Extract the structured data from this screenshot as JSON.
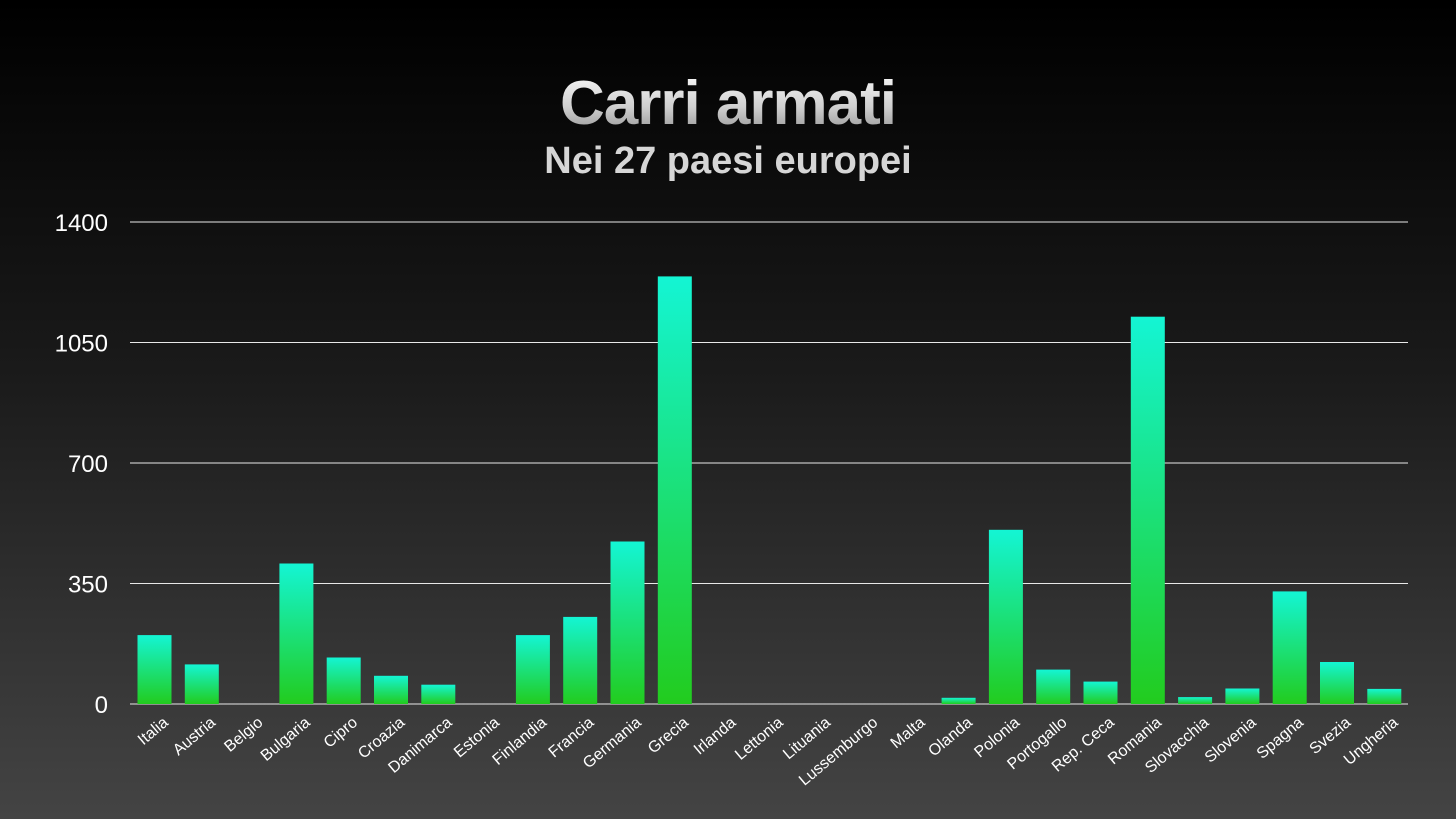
{
  "header": {
    "title": "Carri armati",
    "subtitle": "Nei 27 paesi europei"
  },
  "colors": {
    "bar_top": "#14f5d4",
    "bar_bottom": "#22cc1e",
    "grid": "#e8e8e8",
    "text": "#ffffff"
  },
  "chart_data": {
    "type": "bar",
    "title": "Carri armati",
    "subtitle": "Nei 27 paesi europei",
    "xlabel": "",
    "ylabel": "",
    "ylim": [
      0,
      1400
    ],
    "yticks": [
      0,
      350,
      700,
      1050,
      1400
    ],
    "grid": true,
    "categories": [
      "Italia",
      "Austria",
      "Belgio",
      "Bulgaria",
      "Cipro",
      "Croazia",
      "Danimarca",
      "Estonia",
      "Finlandia",
      "Francia",
      "Germania",
      "Grecia",
      "Irlanda",
      "Lettonia",
      "Lituania",
      "Lussemburgo",
      "Malta",
      "Olanda",
      "Polonia",
      "Portogallo",
      "Rep. Ceca",
      "Romania",
      "Slovacchia",
      "Slovenia",
      "Spagna",
      "Svezia",
      "Ungheria"
    ],
    "values": [
      200,
      115,
      0,
      408,
      135,
      82,
      56,
      0,
      200,
      253,
      472,
      1242,
      0,
      0,
      0,
      0,
      0,
      18,
      506,
      100,
      65,
      1125,
      20,
      45,
      327,
      122,
      44
    ]
  }
}
